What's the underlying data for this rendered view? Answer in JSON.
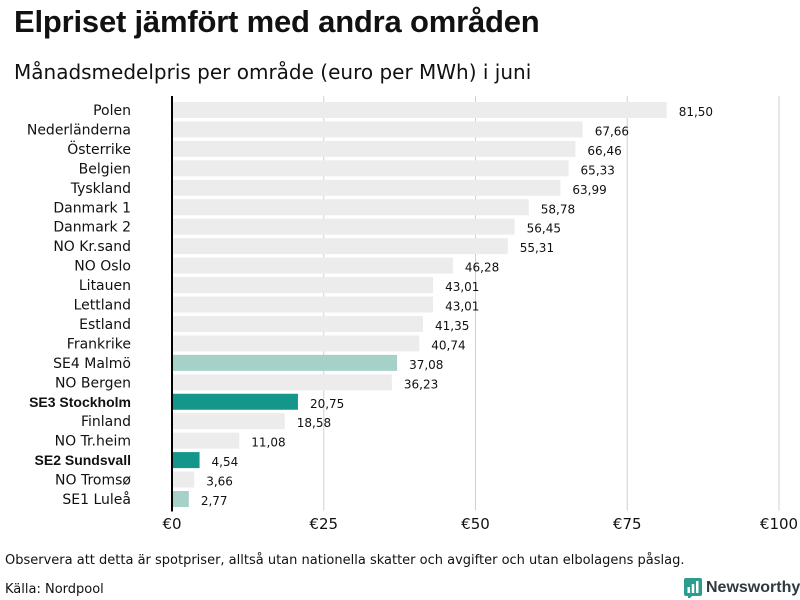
{
  "chart_data": {
    "type": "bar",
    "orientation": "horizontal",
    "title": "Elpriset jämfört med andra områden",
    "subtitle": "Månadsmedelpris per område (euro per MWh) i juni",
    "xlim": [
      0,
      100
    ],
    "x_ticks": [
      0,
      25,
      50,
      75,
      100
    ],
    "x_tick_labels": [
      "€0",
      "€25",
      "€50",
      "€75",
      "€100"
    ],
    "grid": true,
    "categories": [
      "Polen",
      "Nederländerna",
      "Österrike",
      "Belgien",
      "Tyskland",
      "Danmark 1",
      "Danmark 2",
      "NO Kr.sand",
      "NO Oslo",
      "Litauen",
      "Lettland",
      "Estland",
      "Frankrike",
      "SE4 Malmö",
      "NO Bergen",
      "SE3 Stockholm",
      "Finland",
      "NO Tr.heim",
      "SE2 Sundsvall",
      "NO Tromsø",
      "SE1 Luleå"
    ],
    "values": [
      81.5,
      67.66,
      66.46,
      65.33,
      63.99,
      58.78,
      56.45,
      55.31,
      46.28,
      43.01,
      43.01,
      41.35,
      40.74,
      37.08,
      36.23,
      20.75,
      18.58,
      11.08,
      4.54,
      3.66,
      2.77
    ],
    "value_labels": [
      "81,50",
      "67,66",
      "66,46",
      "65,33",
      "63,99",
      "58,78",
      "56,45",
      "55,31",
      "46,28",
      "43,01",
      "43,01",
      "41,35",
      "40,74",
      "37,08",
      "36,23",
      "20,75",
      "18,58",
      "11,08",
      "4,54",
      "3,66",
      "2,77"
    ],
    "highlight_strong": [
      "SE3 Stockholm",
      "SE2 Sundsvall"
    ],
    "highlight_light": [
      "SE4 Malmö",
      "SE1 Luleå"
    ],
    "colors": {
      "default": "#ececec",
      "strong": "#15968a",
      "light": "#a6d1c9",
      "axis": "#000000",
      "grid": "#d0d0d0"
    }
  },
  "footer": {
    "note": "Observera att detta är spotpriser, alltså utan nationella skatter och avgifter och utan elbolagens påslag.",
    "source": "Källa: Nordpool",
    "brand": "Newsworthy",
    "brand_icon": "newsworthy-logo-icon",
    "brand_color": "#2a9d8f"
  }
}
